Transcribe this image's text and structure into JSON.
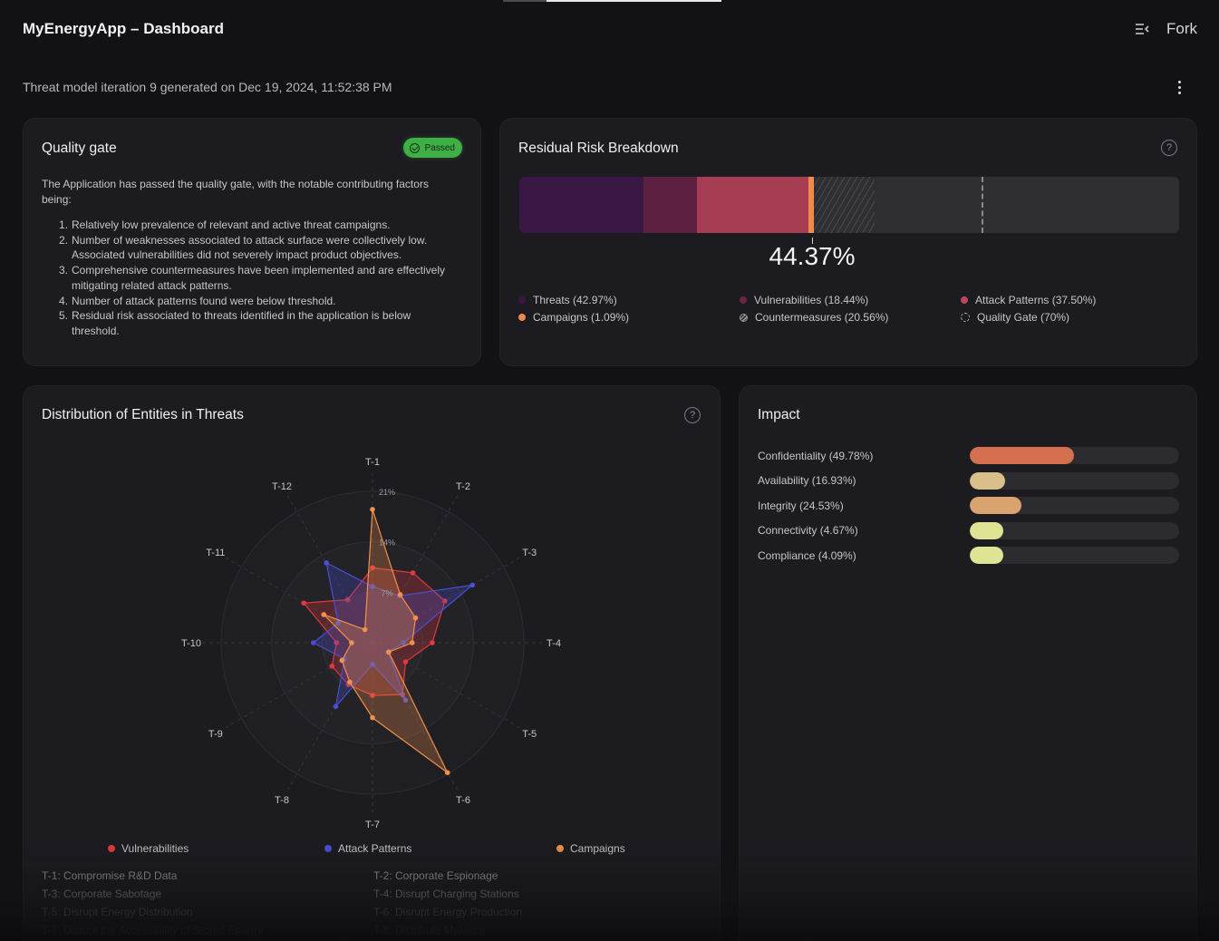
{
  "header": {
    "title": "MyEnergyApp – Dashboard",
    "fork_label": "Fork",
    "menu_icon": "collapse-menu-icon",
    "subtitle": "Threat model iteration 9 generated on Dec 19, 2024, 11:52:38 PM"
  },
  "quality_gate": {
    "title": "Quality gate",
    "status": "Passed",
    "status_color": "#3fae45",
    "intro": "The Application has passed the quality gate, with the notable contributing factors being:",
    "factors": [
      {
        "num": "1.",
        "text": "Relatively low prevalence of relevant and active threat campaigns."
      },
      {
        "num": "2.",
        "text": "Number of weaknesses associated to attack surface were collectively low. Associated vulnerabilities did not severely impact product objectives."
      },
      {
        "num": "3.",
        "text": "Comprehensive countermeasures have been implemented and are effectively mitigating related attack patterns."
      },
      {
        "num": "4.",
        "text": "Number of attack patterns found were below threshold."
      },
      {
        "num": "5.",
        "text": "Residual risk associated to threats identified in the application is below threshold."
      }
    ]
  },
  "residual_risk": {
    "title": "Residual Risk Breakdown",
    "value": 44.37,
    "value_label": "44.37%",
    "quality_gate_threshold": 70,
    "segments": [
      {
        "name": "Threats",
        "percent": 42.97,
        "share_of_bar": 18.8,
        "color": "#3a1744"
      },
      {
        "name": "Vulnerabilities",
        "percent": 18.44,
        "share_of_bar": 8.1,
        "color": "#5c2140"
      },
      {
        "name": "Attack Patterns",
        "percent": 37.5,
        "share_of_bar": 16.9,
        "color": "#a63d52"
      },
      {
        "name": "Campaigns",
        "percent": 1.09,
        "share_of_bar": 0.9,
        "color": "#f08a4b"
      },
      {
        "name": "Countermeasures",
        "percent": 20.56,
        "share_of_bar": 9.1,
        "color": "hatch"
      }
    ],
    "legend": [
      {
        "label": "Threats (42.97%)",
        "color": "#3a1744",
        "style": "solid"
      },
      {
        "label": "Vulnerabilities (18.44%)",
        "color": "#6a2444",
        "style": "solid"
      },
      {
        "label": "Attack Patterns (37.50%)",
        "color": "#c0465c",
        "style": "solid"
      },
      {
        "label": "Campaigns (1.09%)",
        "color": "#f08a4b",
        "style": "solid"
      },
      {
        "label": "Countermeasures (20.56%)",
        "color": "#999999",
        "style": "hatch"
      },
      {
        "label": "Quality Gate (70%)",
        "color": "#aaaaaa",
        "style": "dashed"
      }
    ]
  },
  "distribution": {
    "title": "Distribution of Entities in Threats",
    "threat_list": [
      {
        "label": "T-1: Compromise R&D Data",
        "color": "#9a9aa0"
      },
      {
        "label": "T-2: Corporate Espionage",
        "color": "#9a9aa0"
      },
      {
        "label": "T-3: Corporate Sabotage",
        "color": "#86868c"
      },
      {
        "label": "T-4: Disrupt Charging Stations",
        "color": "#86868c"
      },
      {
        "label": "T-5: Disrupt Energy Distribution",
        "color": "#5c5c62"
      },
      {
        "label": "T-6: Disrupt Energy Production",
        "color": "#5c5c62"
      },
      {
        "label": "T-7: Disrupt the Accessibility of Stored Energy",
        "color": "#3a3a40"
      },
      {
        "label": "T-8: Distribute Malware",
        "color": "#3a3a40"
      }
    ]
  },
  "chart_data": {
    "type": "radar",
    "title": "Distribution of Entities in Threats",
    "categories": [
      "T-1",
      "T-2",
      "T-3",
      "T-4",
      "T-5",
      "T-6",
      "T-7",
      "T-8",
      "T-9",
      "T-10",
      "T-11",
      "T-12"
    ],
    "rlim": [
      0,
      21
    ],
    "ticks": [
      {
        "value": 7,
        "label": "7%"
      },
      {
        "value": 14,
        "label": "14%"
      },
      {
        "value": 21,
        "label": "21%"
      }
    ],
    "grid": true,
    "legend_position": "bottom",
    "series": [
      {
        "name": "Vulnerabilities",
        "color": "#e0393e",
        "values": [
          10.4,
          11.2,
          11.6,
          8.3,
          5.3,
          8.3,
          7.3,
          6.7,
          6.5,
          5.0,
          11.0,
          6.9
        ]
      },
      {
        "name": "Attack Patterns",
        "color": "#4a4fd0",
        "values": [
          7.8,
          7.5,
          16.0,
          4.3,
          2.5,
          9.2,
          3.0,
          10.2,
          4.5,
          8.2,
          5.5,
          12.8
        ]
      },
      {
        "name": "Campaigns",
        "color": "#f0904c",
        "values": [
          18.5,
          7.7,
          6.9,
          5.5,
          2.6,
          20.8,
          10.4,
          6.3,
          4.9,
          2.9,
          7.8,
          2.1
        ]
      }
    ]
  },
  "impact": {
    "title": "Impact",
    "rows": [
      {
        "label": "Confidentiality (49.78%)",
        "value": 49.78,
        "color": "#d4704f"
      },
      {
        "label": "Availability (16.93%)",
        "value": 16.93,
        "color": "#d9c08a"
      },
      {
        "label": "Integrity (24.53%)",
        "value": 24.53,
        "color": "#d9a470"
      },
      {
        "label": "Connectivity (4.67%)",
        "value": 4.67,
        "color": "#dfe394"
      },
      {
        "label": "Compliance (4.09%)",
        "value": 4.09,
        "color": "#dfe394"
      }
    ]
  }
}
